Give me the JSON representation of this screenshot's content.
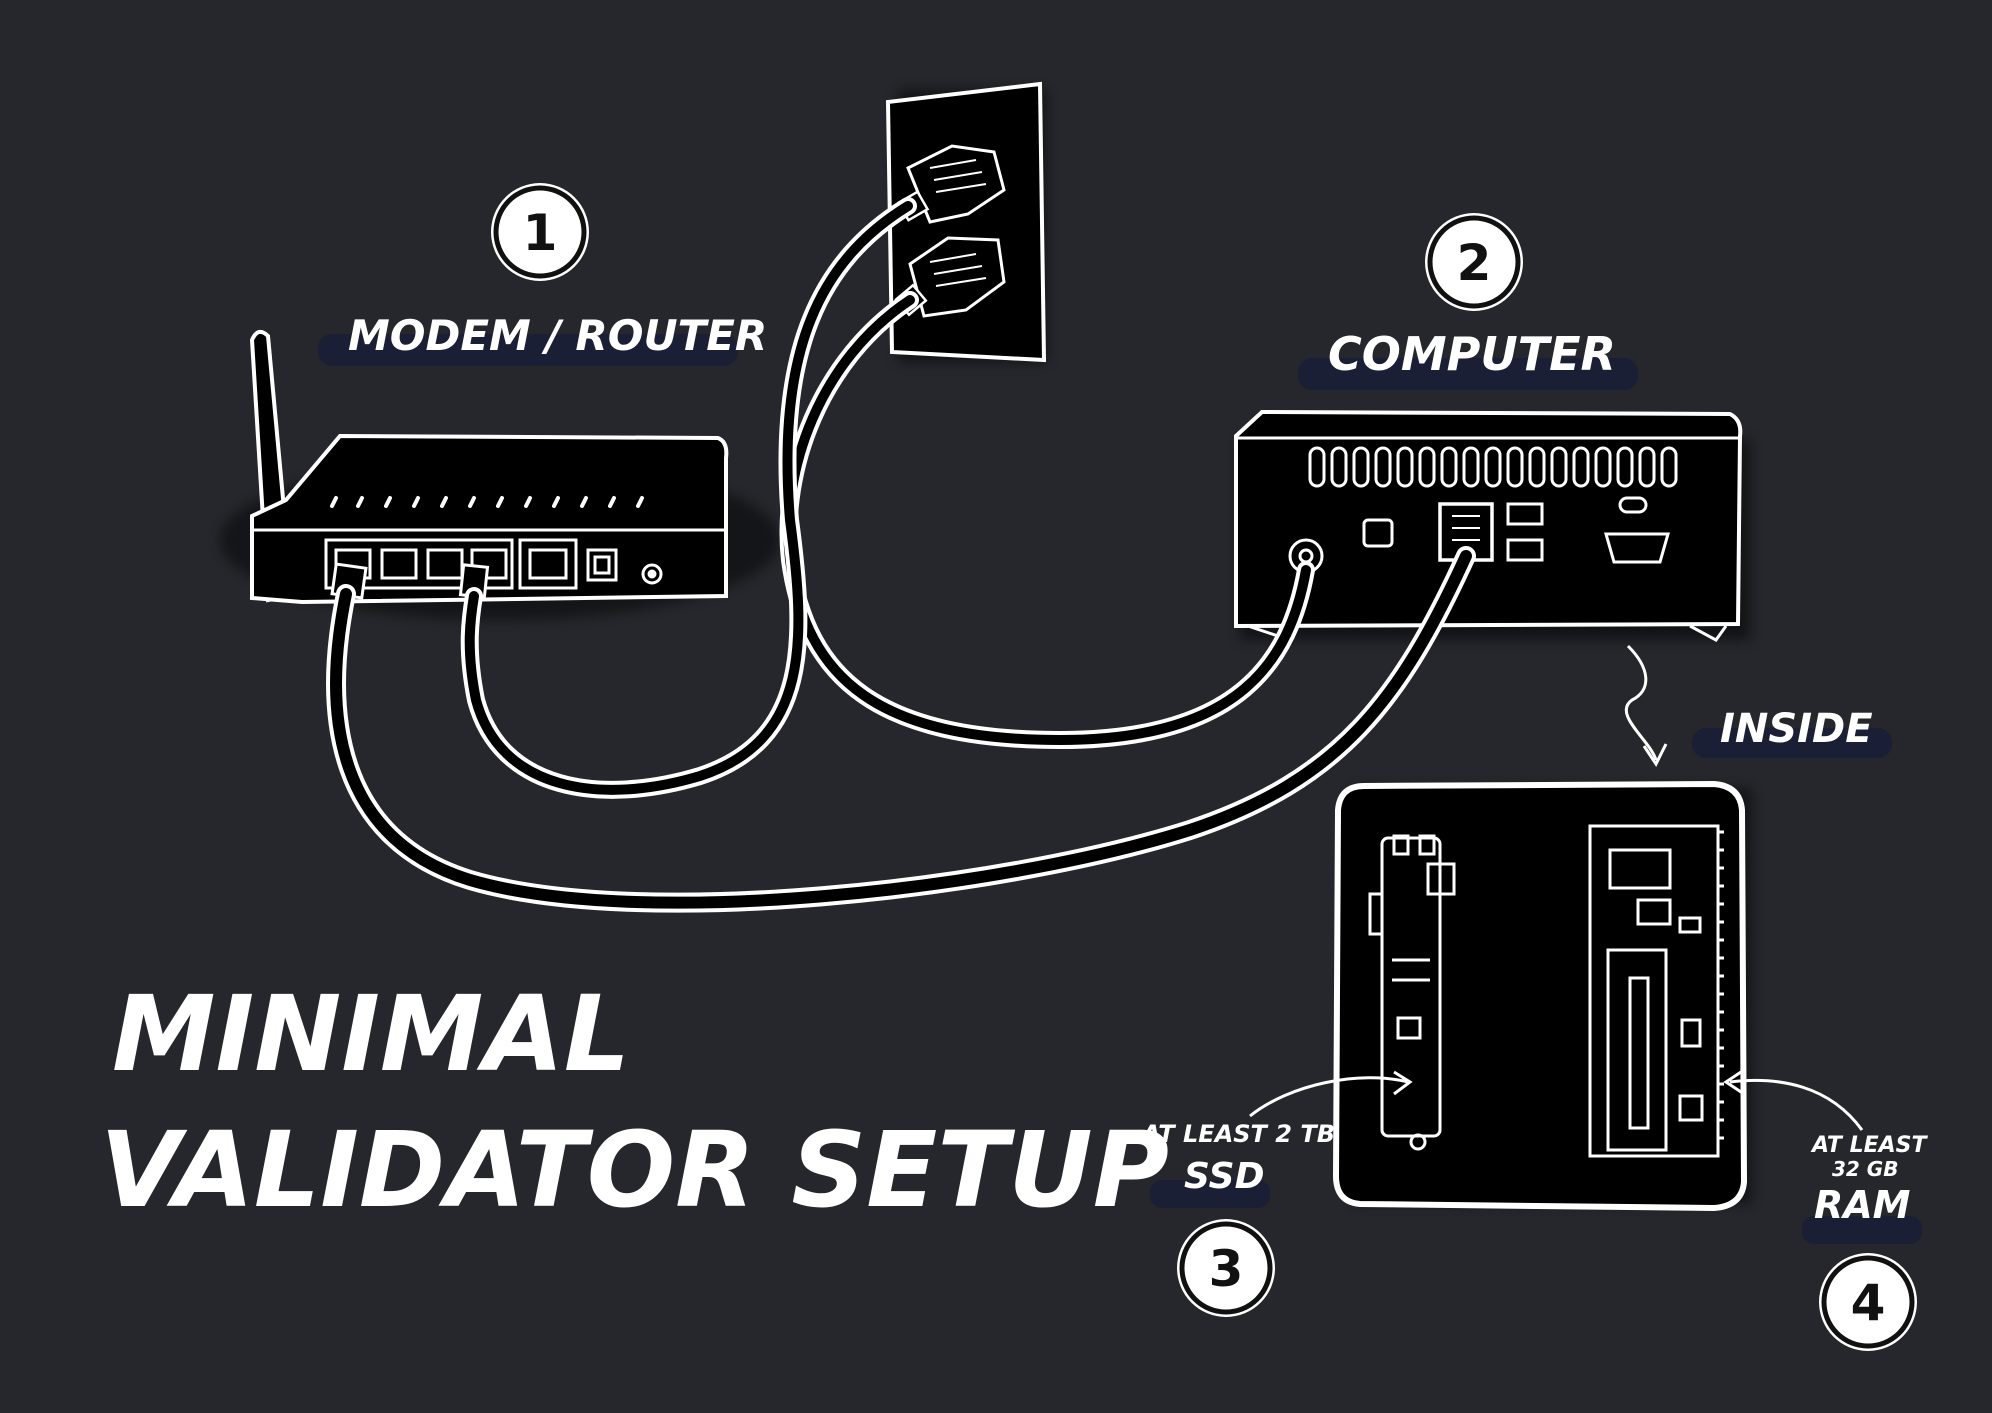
{
  "title": {
    "line1": "MINIMAL",
    "line2": "VALIDATOR SETUP"
  },
  "steps": [
    {
      "number": "1",
      "label": "MODEM / ROUTER"
    },
    {
      "number": "2",
      "label": "COMPUTER"
    },
    {
      "number": "3",
      "label": "SSD",
      "note": "AT LEAST 2 TB"
    },
    {
      "number": "4",
      "label": "RAM",
      "note_line1": "AT LEAST",
      "note_line2": "32 GB"
    }
  ],
  "inside_label": "INSIDE",
  "colors": {
    "background": "#25272c",
    "ink": "#ffffff",
    "device": "#000000",
    "label_shadow": "#1a1f35"
  }
}
